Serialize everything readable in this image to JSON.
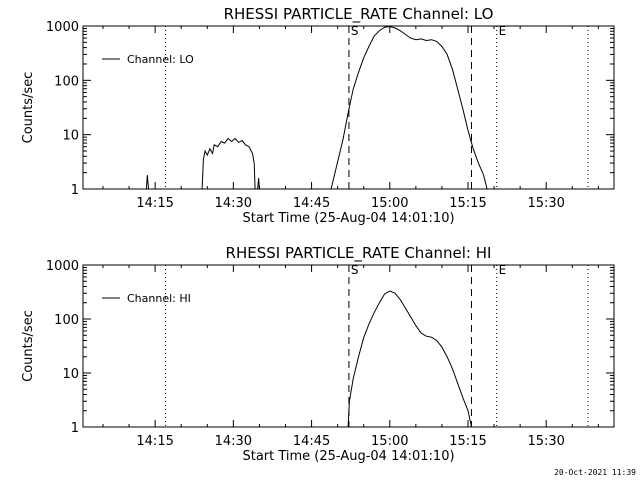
{
  "timestamp": "20-Oct-2021 11:39",
  "chart_data": [
    {
      "type": "line",
      "title": "RHESSI PARTICLE_RATE Channel: LO",
      "xlabel": "Start Time (25-Aug-04 14:01:10)",
      "ylabel": "Counts/sec",
      "ylog": true,
      "xlim": [
        "14:01:10",
        "15:43:00"
      ],
      "ylim": [
        1,
        1000
      ],
      "xticks": [
        "14:15",
        "14:30",
        "14:45",
        "15:00",
        "15:15",
        "15:30"
      ],
      "yticks": [
        "1",
        "10",
        "100",
        "1000"
      ],
      "legend": "top-left",
      "series": [
        {
          "name": "Channel: LO",
          "segments": [
            [
              [
                "14:13:20",
                1.0
              ],
              [
                "14:13:30",
                1.8
              ],
              [
                "14:13:45",
                1.0
              ]
            ],
            [
              [
                "14:24:00",
                1.0
              ],
              [
                "14:24:15",
                3.5
              ],
              [
                "14:24:35",
                5.0
              ],
              [
                "14:25:00",
                4.2
              ],
              [
                "14:25:30",
                5.5
              ],
              [
                "14:26:00",
                4.5
              ],
              [
                "14:26:20",
                6.5
              ],
              [
                "14:27:00",
                6.0
              ],
              [
                "14:27:40",
                7.5
              ],
              [
                "14:28:20",
                7.0
              ],
              [
                "14:29:00",
                8.5
              ],
              [
                "14:29:40",
                7.5
              ],
              [
                "14:30:20",
                8.5
              ],
              [
                "14:31:00",
                7.2
              ],
              [
                "14:31:40",
                7.8
              ],
              [
                "14:32:20",
                6.5
              ],
              [
                "14:33:00",
                6.0
              ],
              [
                "14:33:40",
                4.5
              ],
              [
                "14:34:00",
                3.0
              ],
              [
                "14:34:10",
                1.0
              ]
            ],
            [
              [
                "14:34:40",
                1.0
              ],
              [
                "14:34:50",
                1.6
              ],
              [
                "14:35:00",
                1.0
              ]
            ],
            [
              [
                "14:48:45",
                1.0
              ],
              [
                "14:49:45",
                2.5
              ],
              [
                "14:51:00",
                8.0
              ],
              [
                "14:52:00",
                25.0
              ],
              [
                "14:53:00",
                70.0
              ],
              [
                "14:54:00",
                140.0
              ],
              [
                "14:55:00",
                260.0
              ],
              [
                "14:56:00",
                420.0
              ],
              [
                "14:57:00",
                650.0
              ],
              [
                "14:58:00",
                820.0
              ],
              [
                "14:59:00",
                950.0
              ],
              [
                "15:00:00",
                980.0
              ],
              [
                "15:01:00",
                920.0
              ],
              [
                "15:02:00",
                820.0
              ],
              [
                "15:03:00",
                700.0
              ],
              [
                "15:04:00",
                600.0
              ],
              [
                "15:05:00",
                560.0
              ],
              [
                "15:06:00",
                580.0
              ],
              [
                "15:07:00",
                540.0
              ],
              [
                "15:08:00",
                560.0
              ],
              [
                "15:09:00",
                520.0
              ],
              [
                "15:10:00",
                420.0
              ],
              [
                "15:11:00",
                300.0
              ],
              [
                "15:12:00",
                160.0
              ],
              [
                "15:13:00",
                70.0
              ],
              [
                "15:14:00",
                30.0
              ],
              [
                "15:15:00",
                12.0
              ],
              [
                "15:16:00",
                5.5
              ],
              [
                "15:17:00",
                3.0
              ],
              [
                "15:18:00",
                1.8
              ],
              [
                "15:18:40",
                1.0
              ]
            ]
          ]
        }
      ],
      "vlines": [
        {
          "x": "14:17:00",
          "style": "dotted"
        },
        {
          "x": "14:52:10",
          "style": "dashed",
          "label": "S"
        },
        {
          "x": "15:15:40",
          "style": "dashed"
        },
        {
          "x": "15:20:30",
          "style": "dotted",
          "label": "E"
        },
        {
          "x": "15:38:00",
          "style": "dotted"
        }
      ]
    },
    {
      "type": "line",
      "title": "RHESSI PARTICLE_RATE Channel: HI",
      "xlabel": "Start Time (25-Aug-04 14:01:10)",
      "ylabel": "Counts/sec",
      "ylog": true,
      "xlim": [
        "14:01:10",
        "15:43:00"
      ],
      "ylim": [
        1,
        1000
      ],
      "xticks": [
        "14:15",
        "14:30",
        "14:45",
        "15:00",
        "15:15",
        "15:30"
      ],
      "yticks": [
        "1",
        "10",
        "100",
        "1000"
      ],
      "legend": "top-left",
      "series": [
        {
          "name": "Channel: HI",
          "segments": [
            [
              [
                "14:52:00",
                1.0
              ],
              [
                "14:52:15",
                3.0
              ],
              [
                "14:53:00",
                8.0
              ],
              [
                "14:54:00",
                20.0
              ],
              [
                "14:55:00",
                45.0
              ],
              [
                "14:56:00",
                80.0
              ],
              [
                "14:57:00",
                130.0
              ],
              [
                "14:58:00",
                200.0
              ],
              [
                "14:59:00",
                290.0
              ],
              [
                "15:00:00",
                330.0
              ],
              [
                "15:01:00",
                300.0
              ],
              [
                "15:02:00",
                230.0
              ],
              [
                "15:03:00",
                160.0
              ],
              [
                "15:04:00",
                110.0
              ],
              [
                "15:05:00",
                75.0
              ],
              [
                "15:06:00",
                55.0
              ],
              [
                "15:07:00",
                48.0
              ],
              [
                "15:08:00",
                46.0
              ],
              [
                "15:09:00",
                40.0
              ],
              [
                "15:10:00",
                30.0
              ],
              [
                "15:11:00",
                20.0
              ],
              [
                "15:12:00",
                12.0
              ],
              [
                "15:13:00",
                6.5
              ],
              [
                "15:14:00",
                3.5
              ],
              [
                "15:15:00",
                2.0
              ],
              [
                "15:15:40",
                1.0
              ]
            ]
          ]
        }
      ],
      "vlines": [
        {
          "x": "14:17:00",
          "style": "dotted"
        },
        {
          "x": "14:52:10",
          "style": "dashed",
          "label": "S"
        },
        {
          "x": "15:15:40",
          "style": "dashed"
        },
        {
          "x": "15:20:30",
          "style": "dotted",
          "label": "E"
        },
        {
          "x": "15:38:00",
          "style": "dotted"
        }
      ]
    }
  ]
}
